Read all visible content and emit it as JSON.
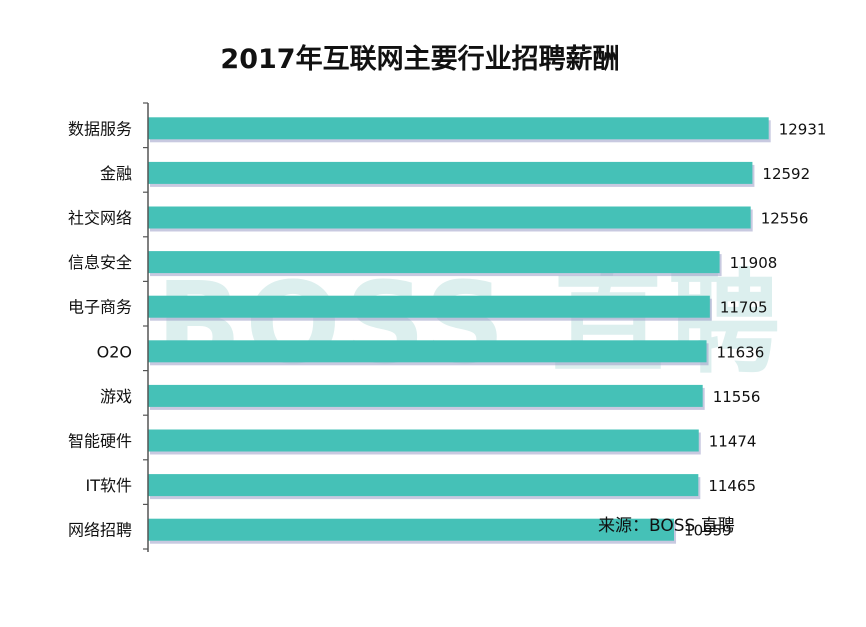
{
  "chart_data": {
    "type": "bar",
    "orientation": "horizontal",
    "title": "2017年互联网主要行业招聘薪酬",
    "categories": [
      "数据服务",
      "金融",
      "社交网络",
      "信息安全",
      "电子商务",
      "O2O",
      "游戏",
      "智能硬件",
      "IT软件",
      "网络招聘"
    ],
    "values": [
      12931,
      12592,
      12556,
      11908,
      11705,
      11636,
      11556,
      11474,
      11465,
      10959
    ],
    "xlim": [
      0,
      14000
    ],
    "xlabel": "",
    "ylabel": "",
    "grid": false,
    "source": "来源：BOSS 直聘",
    "watermark": "BOSS 直聘"
  },
  "colors": {
    "bar": "#45c1b7",
    "bar_shadow": "#9a9cc6",
    "axis": "#555555",
    "watermark": "#dcefee"
  }
}
